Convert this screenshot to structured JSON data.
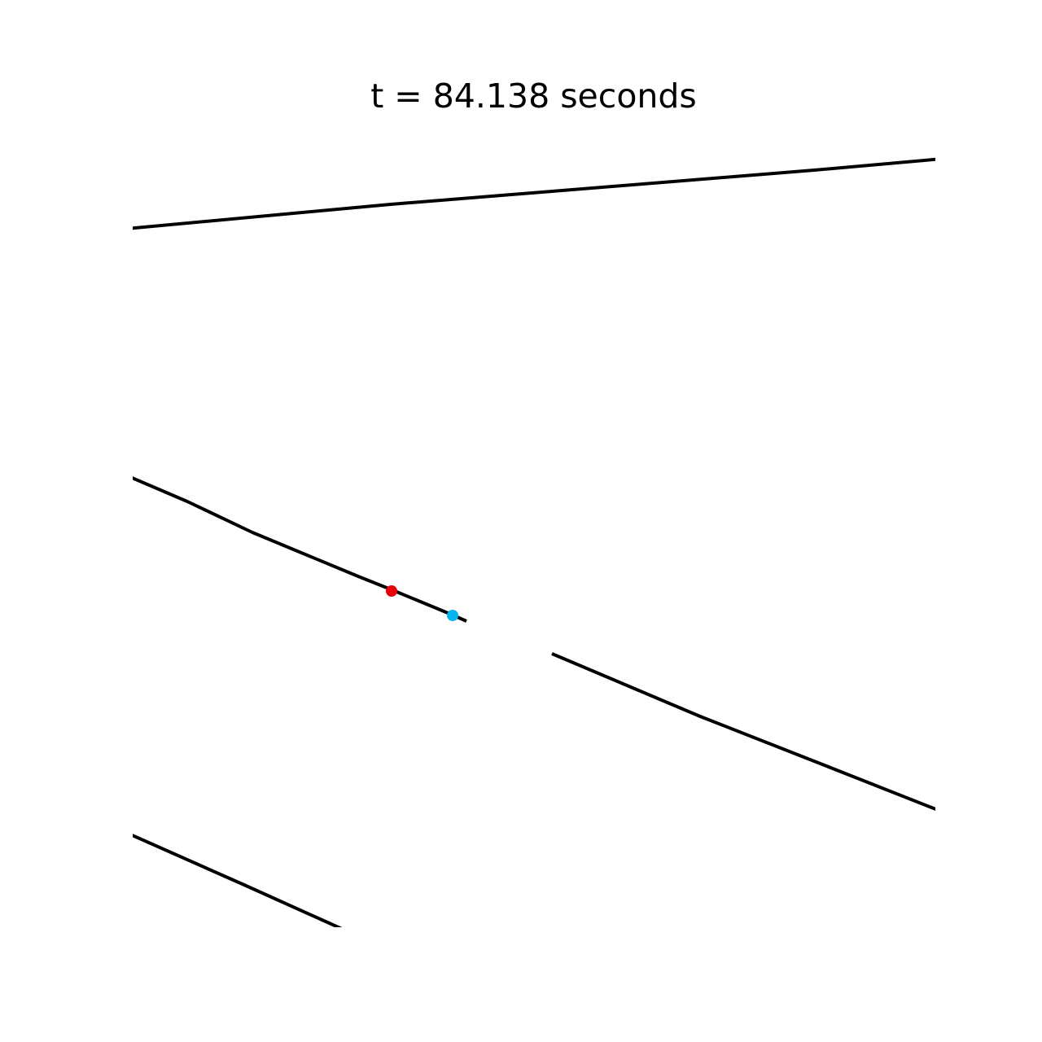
{
  "title": "t = 84.138 seconds",
  "colors": {
    "background": "#ffffff",
    "line": "#000000",
    "marker_red": "#e8000b",
    "marker_blue": "#00b5ee"
  }
}
